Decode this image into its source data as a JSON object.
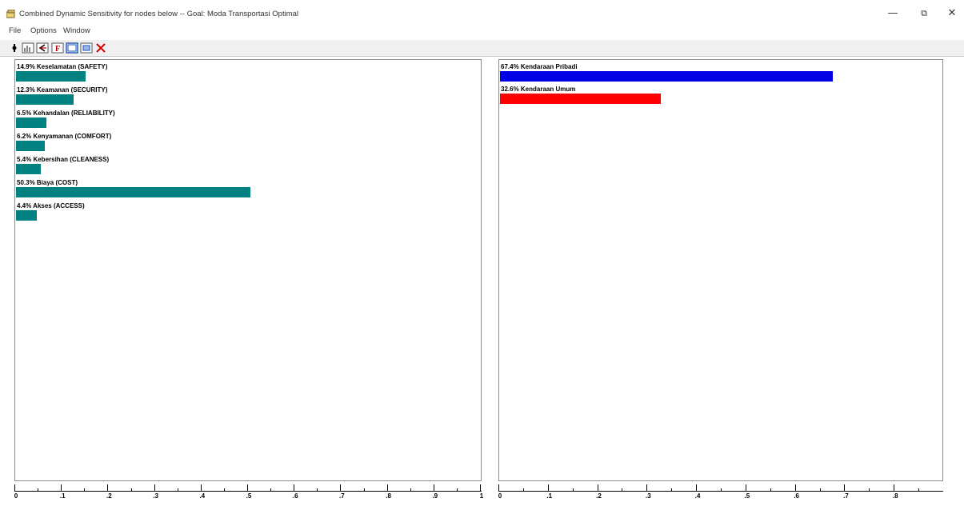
{
  "window": {
    "title": "Combined Dynamic Sensitivity for nodes below -- Goal: Moda Transportasi Optimal",
    "minimize_label": "—",
    "maximize_label": "⧉",
    "close_label": "✕"
  },
  "menu": {
    "items": [
      {
        "label": "File"
      },
      {
        "label": "Options"
      },
      {
        "label": "Window"
      }
    ]
  },
  "toolbar": {
    "buttons": [
      {
        "icon": "pointer-icon"
      },
      {
        "icon": "chart-icon"
      },
      {
        "icon": "reset-icon"
      },
      {
        "icon": "font-icon"
      },
      {
        "icon": "window-icon"
      },
      {
        "icon": "print-icon"
      },
      {
        "icon": "close-x-icon"
      }
    ]
  },
  "chart_data": [
    {
      "type": "bar",
      "orientation": "horizontal",
      "categories": [
        "14.9% Keselamatan (SAFETY)",
        "12.3% Keamanan (SECURITY)",
        "6.5% Kehandalan (RELIABILITY)",
        "6.2% Kenyamanan (COMFORT)",
        "5.4% Kebersihan (CLEANESS)",
        "50.3% Biaya (COST)",
        "4.4% Akses (ACCESS)"
      ],
      "values": [
        0.149,
        0.123,
        0.065,
        0.062,
        0.054,
        0.503,
        0.044
      ],
      "color": "#008080",
      "xlim": [
        0,
        1
      ],
      "xticks": [
        "0",
        ".1",
        ".2",
        ".3",
        ".4",
        ".5",
        ".6",
        ".7",
        ".8",
        ".9",
        "1"
      ]
    },
    {
      "type": "bar",
      "orientation": "horizontal",
      "categories": [
        "67.4% Kendaraan Pribadi",
        "32.6% Kendaraan Umum"
      ],
      "values": [
        0.674,
        0.326
      ],
      "colors": [
        "#0000e6",
        "#ff0000"
      ],
      "xlim": [
        0,
        0.9
      ],
      "xticks": [
        "0",
        ".1",
        ".2",
        ".3",
        ".4",
        ".5",
        ".6",
        ".7",
        ".8"
      ]
    }
  ]
}
